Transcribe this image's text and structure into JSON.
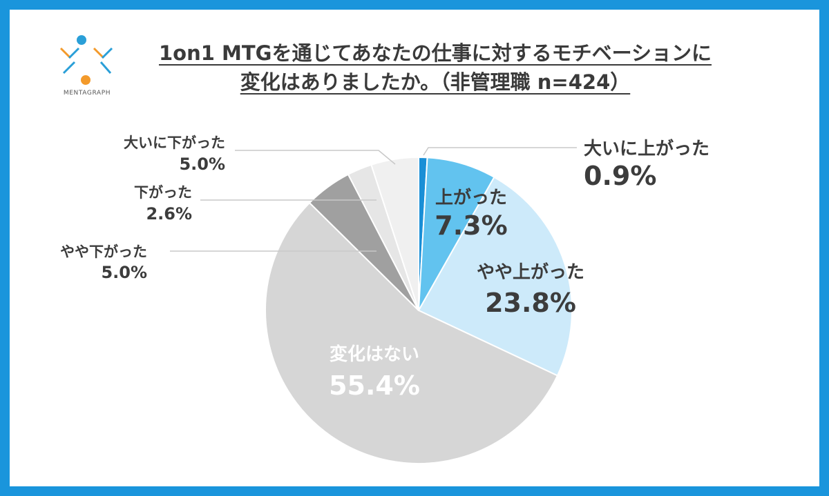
{
  "title_line1": "1on1 MTGを通じてあなたの仕事に対するモチベーションに",
  "title_line2": "変化はありましたか。（非管理職 n=424）",
  "logo_text": "MENTAGRAPH",
  "colors": {
    "frame": "#1a95dc",
    "logo_blue": "#2a9fd8",
    "logo_orange": "#f39a2b"
  },
  "chart_data": {
    "type": "pie",
    "title": "1on1 MTGを通じてあなたの仕事に対するモチベーションに変化はありましたか。（非管理職 n=424）",
    "start": "12 o'clock",
    "direction": "clockwise",
    "slices": [
      {
        "label": "大いに上がった",
        "value": 0.9,
        "display": "0.9%",
        "color": "#1a8fd6"
      },
      {
        "label": "上がった",
        "value": 7.3,
        "display": "7.3%",
        "color": "#62c3ef"
      },
      {
        "label": "やや上がった",
        "value": 23.8,
        "display": "23.8%",
        "color": "#cdeafa"
      },
      {
        "label": "変化はない",
        "value": 55.4,
        "display": "55.4%",
        "color": "#d6d6d6"
      },
      {
        "label": "やや下がった",
        "value": 5.0,
        "display": "5.0%",
        "color": "#a0a0a0"
      },
      {
        "label": "下がった",
        "value": 2.6,
        "display": "2.6%",
        "color": "#e6e6e6"
      },
      {
        "label": "大いに下がった",
        "value": 5.0,
        "display": "5.0%",
        "color": "#f0f0f0"
      }
    ]
  }
}
